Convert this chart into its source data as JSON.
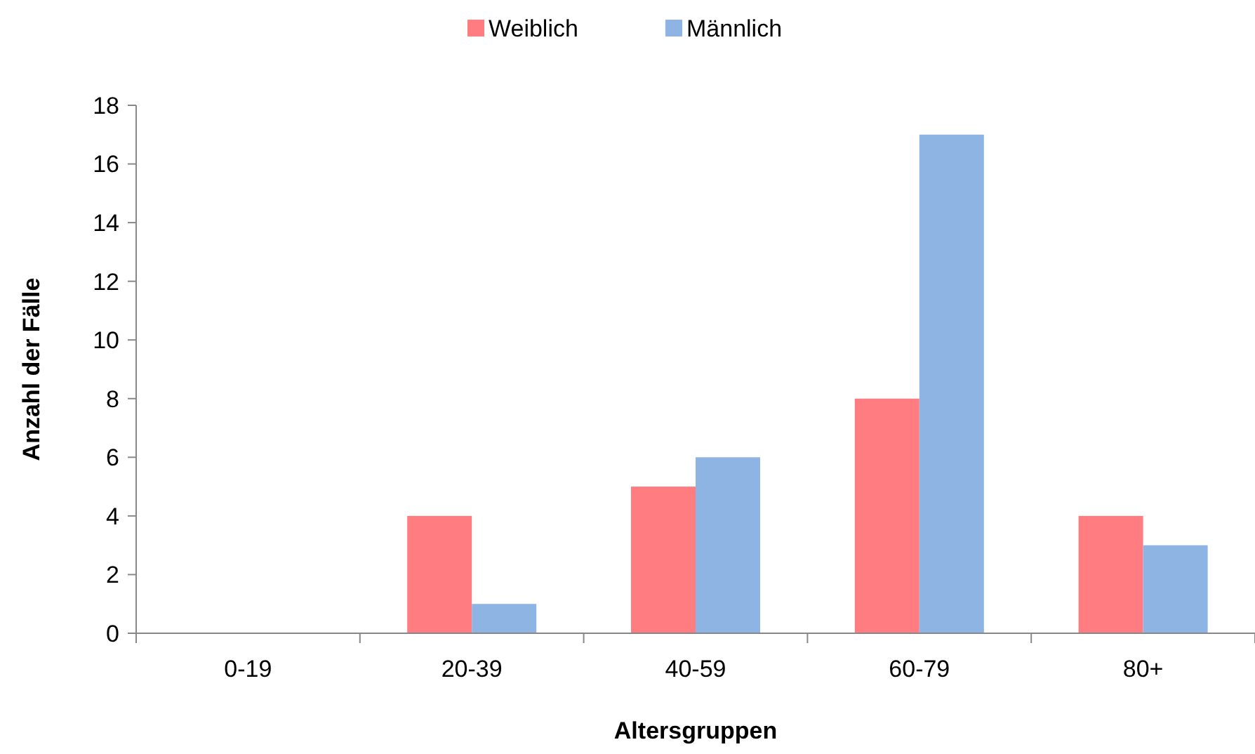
{
  "chart_data": {
    "type": "bar",
    "xlabel": "Altersgruppen",
    "ylabel": "Anzahl der Fälle",
    "categories": [
      "0-19",
      "20-39",
      "40-59",
      "60-79",
      "80+"
    ],
    "series": [
      {
        "name": "Weiblich",
        "color": "#ff7c80",
        "values": [
          0,
          4,
          5,
          8,
          4
        ]
      },
      {
        "name": "Männlich",
        "color": "#8eb4e3",
        "values": [
          0,
          1,
          6,
          17,
          3
        ]
      }
    ],
    "ylim": [
      0,
      18
    ],
    "yticks": [
      0,
      2,
      4,
      6,
      8,
      10,
      12,
      14,
      16,
      18
    ],
    "grid": false,
    "legend": "top"
  }
}
